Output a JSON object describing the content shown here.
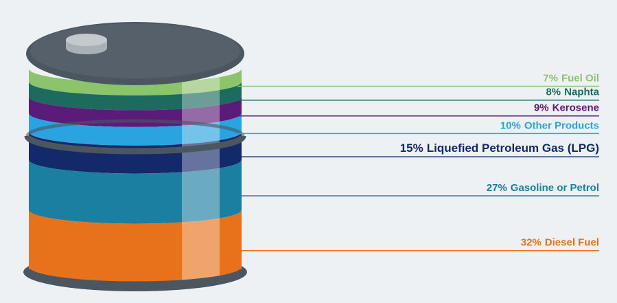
{
  "chart_data": {
    "type": "barrel",
    "series": [
      {
        "name": "Fuel Oil",
        "color": "#8cc46b",
        "values": [
          7
        ],
        "value_labels": [
          "7%"
        ]
      },
      {
        "name": "Naphta",
        "color": "#1c6b5e",
        "values": [
          8
        ],
        "value_labels": [
          "8%"
        ]
      },
      {
        "name": "Kerosene",
        "color": "#5b1b79",
        "values": [
          9
        ],
        "value_labels": [
          "9%"
        ]
      },
      {
        "name": "Other Products",
        "color": "#2aa4e0",
        "values": [
          10
        ],
        "value_labels": [
          "10%"
        ]
      },
      {
        "name": "Liquefied Petroleum Gas (LPG)",
        "color": "#13296a",
        "values": [
          15
        ],
        "value_labels": [
          "15%"
        ]
      },
      {
        "name": "Gasoline or Petrol",
        "color": "#1b7fa1",
        "values": [
          27
        ],
        "value_labels": [
          "27%"
        ]
      },
      {
        "name": "Diesel Fuel",
        "color": "#e8721c",
        "values": [
          32
        ],
        "value_labels": [
          "32%"
        ]
      }
    ]
  }
}
